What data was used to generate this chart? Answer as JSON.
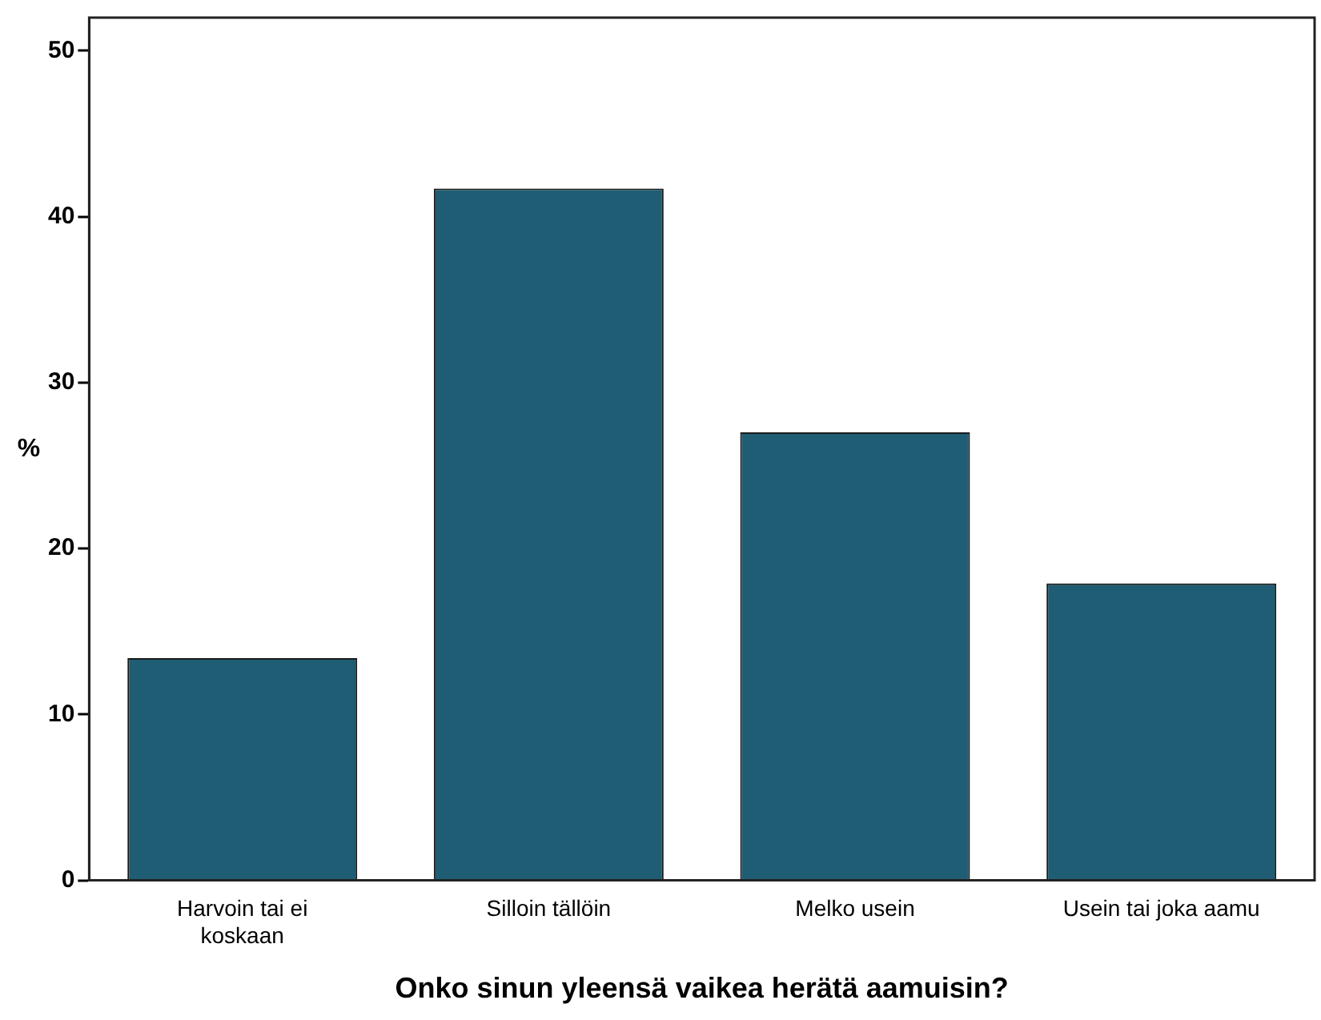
{
  "chart_data": {
    "type": "bar",
    "xlabel": "Onko sinun yleensä vaikea herätä aamuisin?",
    "ylabel": "%",
    "categories": [
      "Harvoin tai ei koskaan",
      "Silloin tällöin",
      "Melko usein",
      "Usein tai joka aamu"
    ],
    "values": [
      13.4,
      41.7,
      27.0,
      17.9
    ],
    "color": "#1f5d74",
    "ylim": [
      0,
      52
    ],
    "yticks": [
      0,
      10,
      20,
      30,
      40,
      50
    ],
    "grid": false,
    "legend": false
  }
}
